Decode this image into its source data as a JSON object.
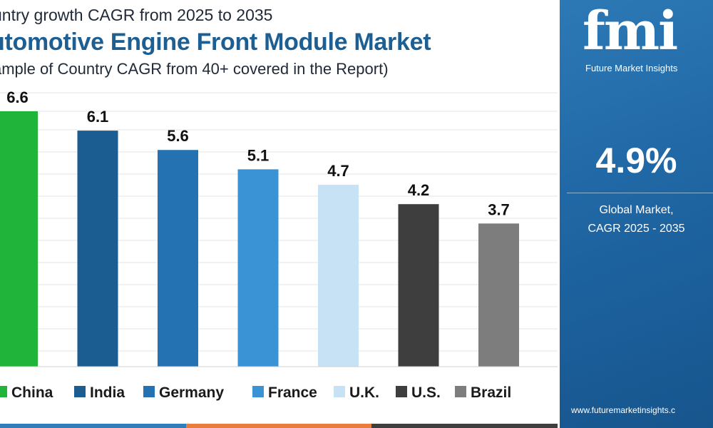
{
  "header": {
    "subtitle_top": "untry growth CAGR from 2025 to 2035",
    "title": "utomotive Engine Front Module Market",
    "subtitle_bottom": "ample of Country CAGR from 40+ covered in the Report)"
  },
  "chart_data": {
    "type": "bar",
    "title": "utomotive Engine Front Module Market",
    "categories": [
      "China",
      "India",
      "Germany",
      "France",
      "U.K.",
      "U.S.",
      "Brazil"
    ],
    "values": [
      6.6,
      6.1,
      5.6,
      5.1,
      4.7,
      4.2,
      3.7
    ],
    "data_labels": [
      "6.6",
      "6.1",
      "5.6",
      "5.1",
      "4.7",
      "4.2",
      "3.7"
    ],
    "colors": [
      "#21b43a",
      "#1b5c91",
      "#2572b2",
      "#3a93d4",
      "#c7e2f4",
      "#3e3e3e",
      "#7d7d7d"
    ],
    "xlabel": "",
    "ylabel": "",
    "ylim": [
      0,
      6.6
    ],
    "grid": true,
    "legend": "bottom"
  },
  "side_panel": {
    "logo_text": "fmi",
    "logo_subtitle": "Future Market Insights",
    "headline_value": "4.9%",
    "label_line1": "Global Market,",
    "label_line2": "CAGR 2025 - 2035",
    "url": "www.futuremarketinsights.c"
  },
  "colors": {
    "panel_blue": "#1d63a0",
    "title_blue": "#1d5f93"
  }
}
